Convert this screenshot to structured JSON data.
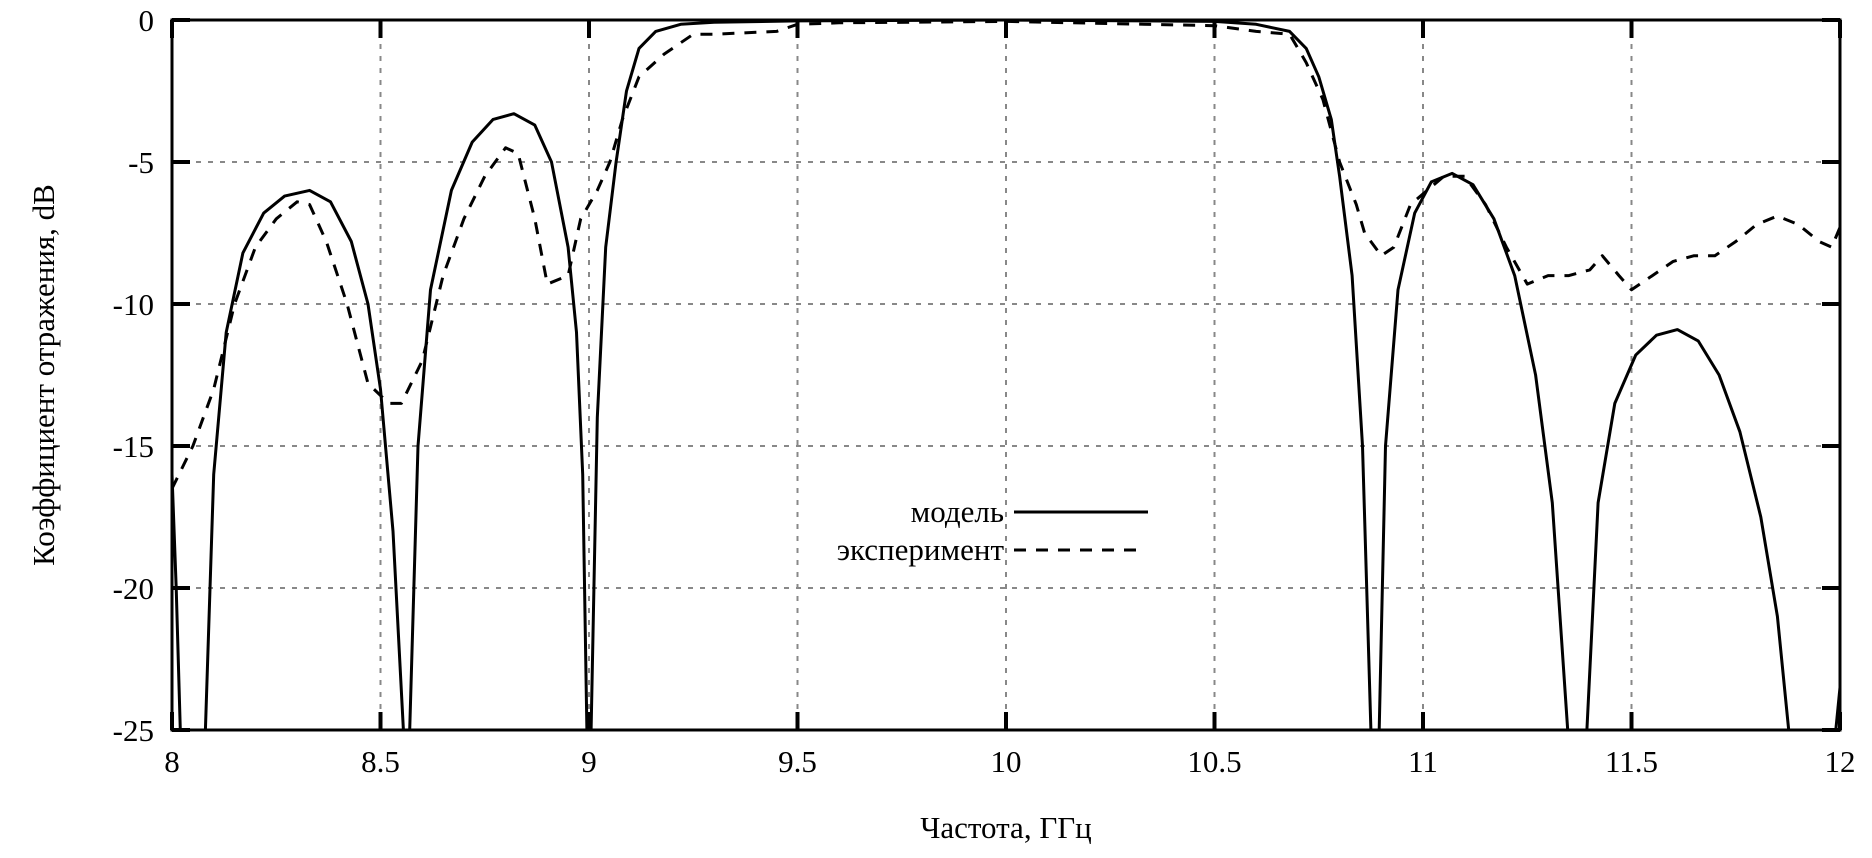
{
  "chart_data": {
    "type": "line",
    "title": "",
    "xlabel": "Частота, ГГц",
    "ylabel": "Коэффициент отражения, dB",
    "xlim": [
      8,
      12
    ],
    "ylim": [
      -25,
      0
    ],
    "xticks": [
      8,
      8.5,
      9,
      9.5,
      10,
      10.5,
      11,
      11.5,
      12
    ],
    "xtick_labels": [
      "8",
      "8.5",
      "9",
      "9.5",
      "10",
      "10.5",
      "11",
      "11.5",
      "12"
    ],
    "yticks": [
      0,
      -5,
      -10,
      -15,
      -20,
      -25
    ],
    "ytick_labels": [
      "0",
      "-5",
      "-10",
      "-15",
      "-20",
      "-25"
    ],
    "grid": true,
    "legend_position": "center",
    "series": [
      {
        "name": "модель",
        "style": "solid",
        "color": "#000000",
        "segments": [
          [
            [
              8.0,
              -16
            ],
            [
              8.01,
              -20
            ],
            [
              8.02,
              -25
            ]
          ],
          [
            [
              8.08,
              -25
            ],
            [
              8.1,
              -16
            ],
            [
              8.13,
              -11
            ],
            [
              8.17,
              -8.2
            ],
            [
              8.22,
              -6.8
            ],
            [
              8.27,
              -6.2
            ],
            [
              8.33,
              -6.0
            ],
            [
              8.38,
              -6.4
            ],
            [
              8.43,
              -7.8
            ],
            [
              8.47,
              -10
            ],
            [
              8.5,
              -13
            ],
            [
              8.53,
              -18
            ],
            [
              8.555,
              -25
            ]
          ],
          [
            [
              8.57,
              -25
            ],
            [
              8.59,
              -15
            ],
            [
              8.62,
              -9.5
            ],
            [
              8.67,
              -6
            ],
            [
              8.72,
              -4.3
            ],
            [
              8.77,
              -3.5
            ],
            [
              8.82,
              -3.3
            ],
            [
              8.87,
              -3.7
            ],
            [
              8.91,
              -5
            ],
            [
              8.95,
              -8
            ],
            [
              8.97,
              -11
            ],
            [
              8.985,
              -16
            ],
            [
              8.995,
              -25
            ]
          ],
          [
            [
              9.005,
              -25
            ],
            [
              9.02,
              -14
            ],
            [
              9.04,
              -8
            ],
            [
              9.065,
              -5
            ],
            [
              9.09,
              -2.5
            ],
            [
              9.12,
              -1
            ],
            [
              9.16,
              -0.4
            ],
            [
              9.22,
              -0.15
            ],
            [
              9.3,
              -0.08
            ],
            [
              9.5,
              -0.03
            ],
            [
              10.0,
              0
            ],
            [
              10.5,
              -0.05
            ],
            [
              10.6,
              -0.15
            ],
            [
              10.68,
              -0.4
            ],
            [
              10.72,
              -1
            ],
            [
              10.75,
              -2
            ],
            [
              10.78,
              -3.5
            ],
            [
              10.8,
              -5.5
            ],
            [
              10.83,
              -9
            ],
            [
              10.855,
              -15
            ],
            [
              10.875,
              -25
            ]
          ],
          [
            [
              10.895,
              -25
            ],
            [
              10.91,
              -15
            ],
            [
              10.94,
              -9.5
            ],
            [
              10.98,
              -6.8
            ],
            [
              11.02,
              -5.7
            ],
            [
              11.07,
              -5.4
            ],
            [
              11.12,
              -5.8
            ],
            [
              11.17,
              -7
            ],
            [
              11.22,
              -9
            ],
            [
              11.27,
              -12.5
            ],
            [
              11.31,
              -17
            ],
            [
              11.347,
              -25
            ]
          ],
          [
            [
              11.393,
              -25
            ],
            [
              11.42,
              -17
            ],
            [
              11.46,
              -13.5
            ],
            [
              11.51,
              -11.8
            ],
            [
              11.56,
              -11.1
            ],
            [
              11.61,
              -10.9
            ],
            [
              11.66,
              -11.3
            ],
            [
              11.71,
              -12.5
            ],
            [
              11.76,
              -14.5
            ],
            [
              11.81,
              -17.5
            ],
            [
              11.85,
              -21
            ],
            [
              11.877,
              -25
            ]
          ],
          [
            [
              11.99,
              -25
            ],
            [
              12.0,
              -23.5
            ]
          ]
        ]
      },
      {
        "name": "эксперимент",
        "style": "dashed",
        "color": "#000000",
        "segments": [
          [
            [
              8.0,
              -16.5
            ],
            [
              8.05,
              -15
            ],
            [
              8.1,
              -13
            ],
            [
              8.15,
              -10
            ],
            [
              8.2,
              -8
            ],
            [
              8.25,
              -7
            ],
            [
              8.3,
              -6.4
            ],
            [
              8.33,
              -6.5
            ],
            [
              8.37,
              -7.8
            ],
            [
              8.42,
              -10
            ],
            [
              8.47,
              -12.8
            ],
            [
              8.52,
              -13.5
            ],
            [
              8.55,
              -13.5
            ],
            [
              8.6,
              -12
            ],
            [
              8.65,
              -9
            ],
            [
              8.7,
              -7
            ],
            [
              8.75,
              -5.5
            ],
            [
              8.8,
              -4.5
            ],
            [
              8.83,
              -4.7
            ],
            [
              8.87,
              -7
            ],
            [
              8.9,
              -9.3
            ],
            [
              8.95,
              -9
            ],
            [
              8.98,
              -7
            ],
            [
              9.02,
              -6
            ],
            [
              9.05,
              -5
            ],
            [
              9.08,
              -3.5
            ],
            [
              9.12,
              -2
            ],
            [
              9.18,
              -1.2
            ],
            [
              9.25,
              -0.5
            ],
            [
              9.3,
              -0.5
            ],
            [
              9.45,
              -0.4
            ],
            [
              9.5,
              -0.15
            ],
            [
              9.6,
              -0.1
            ],
            [
              10.0,
              -0.05
            ],
            [
              10.5,
              -0.2
            ],
            [
              10.6,
              -0.4
            ],
            [
              10.68,
              -0.5
            ],
            [
              10.72,
              -1.5
            ],
            [
              10.76,
              -2.8
            ],
            [
              10.8,
              -5
            ],
            [
              10.84,
              -6.5
            ],
            [
              10.86,
              -7.5
            ],
            [
              10.9,
              -8.3
            ],
            [
              10.93,
              -8
            ],
            [
              10.97,
              -6.5
            ],
            [
              11.05,
              -5.5
            ],
            [
              11.1,
              -5.5
            ],
            [
              11.15,
              -6.5
            ],
            [
              11.2,
              -8
            ],
            [
              11.25,
              -9.3
            ],
            [
              11.3,
              -9
            ],
            [
              11.35,
              -9
            ],
            [
              11.4,
              -8.8
            ],
            [
              11.43,
              -8.3
            ],
            [
              11.47,
              -9
            ],
            [
              11.5,
              -9.5
            ],
            [
              11.55,
              -9
            ],
            [
              11.6,
              -8.5
            ],
            [
              11.65,
              -8.3
            ],
            [
              11.7,
              -8.3
            ],
            [
              11.75,
              -7.8
            ],
            [
              11.8,
              -7.2
            ],
            [
              11.85,
              -6.9
            ],
            [
              11.9,
              -7.2
            ],
            [
              11.95,
              -7.8
            ],
            [
              11.98,
              -8
            ],
            [
              12.0,
              -7.3
            ]
          ]
        ]
      }
    ]
  }
}
